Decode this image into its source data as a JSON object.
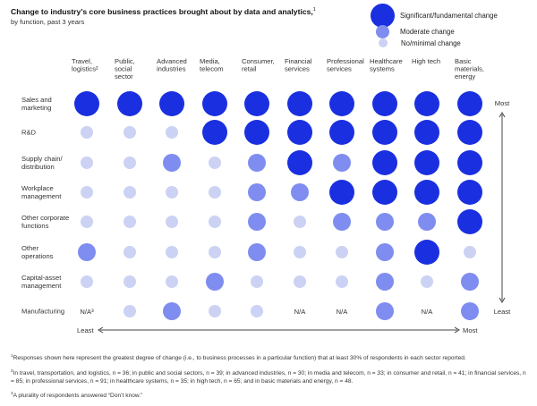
{
  "header": {
    "title": "Change to industry’s core business practices brought about by data and analytics,",
    "title_note": "1",
    "subtitle": "by function, past 3 years"
  },
  "legend": [
    {
      "label": "Significant/fundamental change",
      "level": 3,
      "color": "#1a2fe0"
    },
    {
      "label": "Moderate change",
      "level": 2,
      "color": "#7f8df0"
    },
    {
      "label": "No/minimal change",
      "level": 1,
      "color": "#ccd2f4"
    }
  ],
  "chart_data": {
    "type": "bubble-matrix",
    "title": "Change to industry’s core business practices brought about by data and analytics,",
    "subtitle": "by function, past 3 years",
    "columns": [
      "Travel, logistics²",
      "Public, social sector",
      "Advanced industries",
      "Media, telecom",
      "Consumer, retail",
      "Financial services",
      "Professional services",
      "Healthcare systems",
      "High tech",
      "Basic materials, energy"
    ],
    "rows": [
      "Sales and marketing",
      "R&D",
      "Supply chain/ distribution",
      "Workplace management",
      "Other corporate functions",
      "Other operations",
      "Capital-asset management",
      "Manufacturing"
    ],
    "scale": {
      "3": "Significant/fundamental change",
      "2": "Moderate change",
      "1": "No/minimal change",
      "0": "N/A"
    },
    "values": [
      [
        3,
        3,
        3,
        3,
        3,
        3,
        3,
        3,
        3,
        3
      ],
      [
        1,
        1,
        1,
        3,
        3,
        3,
        3,
        3,
        3,
        3
      ],
      [
        1,
        1,
        2,
        1,
        2,
        3,
        2,
        3,
        3,
        3
      ],
      [
        1,
        1,
        1,
        1,
        2,
        2,
        3,
        3,
        3,
        3
      ],
      [
        1,
        1,
        1,
        1,
        2,
        1,
        2,
        2,
        2,
        3
      ],
      [
        2,
        1,
        1,
        1,
        2,
        1,
        1,
        2,
        3,
        1
      ],
      [
        1,
        1,
        1,
        2,
        1,
        1,
        1,
        2,
        1,
        2
      ],
      [
        0,
        1,
        2,
        1,
        1,
        0,
        0,
        2,
        0,
        2
      ]
    ],
    "na_label": "N/A",
    "na_note_label": "N/A³",
    "vertical_axis": {
      "top": "Most",
      "bottom": "Least"
    },
    "horizontal_axis": {
      "left": "Least",
      "right": "Most"
    }
  },
  "footnotes": [
    {
      "mark": "1",
      "text": "Responses shown here represent the greatest degree of change (i.e., to business processes in a particular function) that at least 30% of respondents in each sector reported."
    },
    {
      "mark": "2",
      "text": "In travel, transportation, and logistics, n = 36; in public and social sectors, n = 39; in advanced industries, n = 30; in media and telecom, n = 33; in consumer and retail, n = 41; in financial services, n = 85; in professional services, n = 91; in healthcare systems, n = 35; in high tech, n = 65; and in basic materials and energy, n = 48."
    },
    {
      "mark": "3",
      "text": "A plurality of respondents answered “Don’t know.”"
    }
  ]
}
